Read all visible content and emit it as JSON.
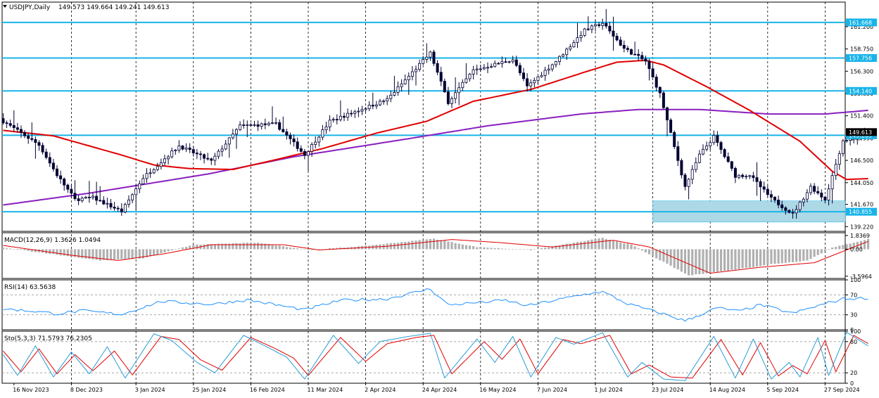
{
  "window": {
    "symbol_label": "USDJPY,Daily",
    "ohlc_label": "149.573 149.664 149.241 149.613",
    "collapse_icon": "triangle-down-icon"
  },
  "colors": {
    "background": "#ffffff",
    "frame": "#000000",
    "candle": "#000033",
    "ma_fast": "#e00000",
    "ma_slow": "#8a1fc0",
    "level_line": "#18b4e8",
    "zone_fill": "#add8e6",
    "macd_hist": "#b0b0b0",
    "macd_signal": "#e00000",
    "rsi_line": "#1e90ff",
    "sto_main": "#2a9dd6",
    "sto_signal": "#e00000",
    "grid": "#000000"
  },
  "chart_data": [
    {
      "type": "candlestick",
      "panel": "price",
      "symbol": "USDJPY",
      "timeframe": "Daily",
      "y_ticks": [
        "161.200",
        "158.750",
        "156.300",
        "153.850",
        "151.400",
        "148.950",
        "146.500",
        "144.050",
        "141.670",
        "139.220"
      ],
      "y_tick_values": [
        161.2,
        158.75,
        156.3,
        153.85,
        151.4,
        148.95,
        146.5,
        144.05,
        141.67,
        139.22
      ],
      "ylim": [
        138.7,
        163.9
      ],
      "x_ticks": [
        "16 Nov 2023",
        "8 Dec 2023",
        "3 Jan 2024",
        "25 Jan 2024",
        "16 Feb 2024",
        "11 Mar 2024",
        "2 Apr 2024",
        "24 Apr 2024",
        "16 May 2024",
        "7 Jun 2024",
        "1 Jul 2024",
        "23 Jul 2024",
        "14 Aug 2024",
        "5 Sep 2024",
        "27 Sep 2024"
      ],
      "grid": "vertical-dashed",
      "horizontal_levels": [
        {
          "value": 161.668,
          "label": "161.668"
        },
        {
          "value": 157.756,
          "label": "157.756"
        },
        {
          "value": 154.14,
          "label": "154.140"
        },
        {
          "value": 149.263,
          "label": "149.263"
        },
        {
          "value": 140.855,
          "label": "140.855"
        }
      ],
      "zone": {
        "from": "23 Jul 2024",
        "to_after_last_bar_days": 14,
        "top": 142.05,
        "bottom": 139.72
      },
      "price_tag": "149.613",
      "close_anchors": [
        {
          "d": "2023-11-13",
          "c": 150.8
        },
        {
          "d": "2023-11-20",
          "c": 149.5
        },
        {
          "d": "2023-11-27",
          "c": 148.2
        },
        {
          "d": "2023-12-04",
          "c": 144.9
        },
        {
          "d": "2023-12-11",
          "c": 142.2
        },
        {
          "d": "2023-12-18",
          "c": 142.4
        },
        {
          "d": "2023-12-28",
          "c": 140.9
        },
        {
          "d": "2024-01-05",
          "c": 144.6
        },
        {
          "d": "2024-01-19",
          "c": 148.1
        },
        {
          "d": "2024-02-01",
          "c": 146.4
        },
        {
          "d": "2024-02-13",
          "c": 150.3
        },
        {
          "d": "2024-02-27",
          "c": 150.5
        },
        {
          "d": "2024-03-08",
          "c": 147.1
        },
        {
          "d": "2024-03-19",
          "c": 150.8
        },
        {
          "d": "2024-04-10",
          "c": 153.2
        },
        {
          "d": "2024-04-26",
          "c": 158.3
        },
        {
          "d": "2024-05-03",
          "c": 152.9
        },
        {
          "d": "2024-05-14",
          "c": 156.4
        },
        {
          "d": "2024-05-29",
          "c": 157.6
        },
        {
          "d": "2024-06-04",
          "c": 154.6
        },
        {
          "d": "2024-06-14",
          "c": 157.4
        },
        {
          "d": "2024-06-26",
          "c": 160.8
        },
        {
          "d": "2024-07-03",
          "c": 161.6
        },
        {
          "d": "2024-07-11",
          "c": 158.8
        },
        {
          "d": "2024-07-19",
          "c": 157.4
        },
        {
          "d": "2024-07-25",
          "c": 153.8
        },
        {
          "d": "2024-08-05",
          "c": 143.6
        },
        {
          "d": "2024-08-09",
          "c": 147.1
        },
        {
          "d": "2024-08-15",
          "c": 149.1
        },
        {
          "d": "2024-08-23",
          "c": 144.8
        },
        {
          "d": "2024-08-29",
          "c": 144.9
        },
        {
          "d": "2024-09-06",
          "c": 142.3
        },
        {
          "d": "2024-09-16",
          "c": 140.6
        },
        {
          "d": "2024-09-23",
          "c": 143.6
        },
        {
          "d": "2024-09-27",
          "c": 142.2
        },
        {
          "d": "2024-10-04",
          "c": 148.7
        },
        {
          "d": "2024-10-11",
          "c": 149.1
        },
        {
          "d": "2024-10-15",
          "c": 149.6
        }
      ],
      "ma_fast_anchors": [
        {
          "d": "2023-11-13",
          "v": 149.8
        },
        {
          "d": "2023-12-01",
          "v": 149.2
        },
        {
          "d": "2023-12-27",
          "v": 147.2
        },
        {
          "d": "2024-01-10",
          "v": 146.0
        },
        {
          "d": "2024-01-24",
          "v": 145.6
        },
        {
          "d": "2024-02-09",
          "v": 145.5
        },
        {
          "d": "2024-02-23",
          "v": 146.4
        },
        {
          "d": "2024-03-15",
          "v": 147.8
        },
        {
          "d": "2024-04-05",
          "v": 149.5
        },
        {
          "d": "2024-04-25",
          "v": 150.8
        },
        {
          "d": "2024-05-14",
          "v": 153.0
        },
        {
          "d": "2024-06-05",
          "v": 154.3
        },
        {
          "d": "2024-06-26",
          "v": 156.2
        },
        {
          "d": "2024-07-09",
          "v": 157.3
        },
        {
          "d": "2024-07-19",
          "v": 157.5
        },
        {
          "d": "2024-07-26",
          "v": 157.0
        },
        {
          "d": "2024-08-13",
          "v": 154.6
        },
        {
          "d": "2024-08-29",
          "v": 152.0
        },
        {
          "d": "2024-09-18",
          "v": 148.6
        },
        {
          "d": "2024-10-01",
          "v": 145.3
        },
        {
          "d": "2024-10-07",
          "v": 144.4
        },
        {
          "d": "2024-10-15",
          "v": 144.5
        }
      ],
      "ma_slow_anchors": [
        {
          "d": "2023-11-13",
          "v": 141.6
        },
        {
          "d": "2023-12-15",
          "v": 142.9
        },
        {
          "d": "2024-01-31",
          "v": 145.0
        },
        {
          "d": "2024-03-05",
          "v": 146.9
        },
        {
          "d": "2024-04-15",
          "v": 148.7
        },
        {
          "d": "2024-05-20",
          "v": 150.3
        },
        {
          "d": "2024-06-25",
          "v": 151.6
        },
        {
          "d": "2024-07-17",
          "v": 152.1
        },
        {
          "d": "2024-08-09",
          "v": 152.1
        },
        {
          "d": "2024-09-05",
          "v": 151.6
        },
        {
          "d": "2024-09-27",
          "v": 151.6
        },
        {
          "d": "2024-10-15",
          "v": 152.0
        }
      ]
    },
    {
      "type": "histogram",
      "panel": "macd",
      "label": "MACD(12,26,9) 1.3626 1.0494",
      "y_ticks": [
        "1.8369",
        "0.00",
        "-3.5964"
      ],
      "y_tick_values": [
        1.8369,
        0,
        -3.5964
      ],
      "ylim": [
        -3.9,
        2.2
      ],
      "hist_anchors": [
        {
          "d": "2023-11-13",
          "v": 0.2
        },
        {
          "d": "2023-11-30",
          "v": -0.6
        },
        {
          "d": "2023-12-20",
          "v": -1.5
        },
        {
          "d": "2024-01-05",
          "v": -1.2
        },
        {
          "d": "2024-01-25",
          "v": 0.6
        },
        {
          "d": "2024-02-20",
          "v": 0.9
        },
        {
          "d": "2024-03-11",
          "v": -0.1
        },
        {
          "d": "2024-04-01",
          "v": 0.4
        },
        {
          "d": "2024-04-29",
          "v": 1.4
        },
        {
          "d": "2024-05-15",
          "v": 0.3
        },
        {
          "d": "2024-06-05",
          "v": -0.1
        },
        {
          "d": "2024-07-03",
          "v": 1.5
        },
        {
          "d": "2024-07-15",
          "v": 0.6
        },
        {
          "d": "2024-08-06",
          "v": -3.5
        },
        {
          "d": "2024-08-23",
          "v": -2.7
        },
        {
          "d": "2024-09-06",
          "v": -2.0
        },
        {
          "d": "2024-09-20",
          "v": -1.5
        },
        {
          "d": "2024-10-01",
          "v": 0.2
        },
        {
          "d": "2024-10-15",
          "v": 1.36
        }
      ],
      "signal_anchors": [
        {
          "d": "2023-11-13",
          "v": 0.5
        },
        {
          "d": "2023-12-08",
          "v": -0.8
        },
        {
          "d": "2023-12-27",
          "v": -1.5
        },
        {
          "d": "2024-01-15",
          "v": -0.6
        },
        {
          "d": "2024-02-01",
          "v": 0.6
        },
        {
          "d": "2024-02-29",
          "v": 0.6
        },
        {
          "d": "2024-03-14",
          "v": -0.1
        },
        {
          "d": "2024-04-10",
          "v": 0.4
        },
        {
          "d": "2024-05-06",
          "v": 1.3
        },
        {
          "d": "2024-05-23",
          "v": 0.9
        },
        {
          "d": "2024-06-13",
          "v": 0.3
        },
        {
          "d": "2024-07-08",
          "v": 1.2
        },
        {
          "d": "2024-07-20",
          "v": 0.3
        },
        {
          "d": "2024-08-14",
          "v": -3.2
        },
        {
          "d": "2024-09-03",
          "v": -2.4
        },
        {
          "d": "2024-09-24",
          "v": -1.8
        },
        {
          "d": "2024-10-15",
          "v": 1.05
        }
      ]
    },
    {
      "type": "line",
      "panel": "rsi",
      "label": "RSI(14) 63.5638",
      "y_ticks": [
        "100",
        "70",
        "30",
        "0"
      ],
      "y_tick_values": [
        100,
        70,
        30,
        0
      ],
      "ylim": [
        0,
        100
      ],
      "levels": [
        70,
        30
      ],
      "anchors": [
        {
          "d": "2023-11-13",
          "v": 42
        },
        {
          "d": "2023-11-24",
          "v": 37
        },
        {
          "d": "2023-12-04",
          "v": 32
        },
        {
          "d": "2023-12-13",
          "v": 38
        },
        {
          "d": "2023-12-28",
          "v": 31
        },
        {
          "d": "2024-01-12",
          "v": 57
        },
        {
          "d": "2024-02-01",
          "v": 51
        },
        {
          "d": "2024-02-15",
          "v": 60
        },
        {
          "d": "2024-03-08",
          "v": 40
        },
        {
          "d": "2024-03-22",
          "v": 59
        },
        {
          "d": "2024-04-10",
          "v": 62
        },
        {
          "d": "2024-04-26",
          "v": 82
        },
        {
          "d": "2024-05-03",
          "v": 50
        },
        {
          "d": "2024-05-27",
          "v": 59
        },
        {
          "d": "2024-06-04",
          "v": 48
        },
        {
          "d": "2024-06-28",
          "v": 74
        },
        {
          "d": "2024-07-03",
          "v": 76
        },
        {
          "d": "2024-07-12",
          "v": 52
        },
        {
          "d": "2024-07-25",
          "v": 34
        },
        {
          "d": "2024-08-05",
          "v": 18
        },
        {
          "d": "2024-08-16",
          "v": 44
        },
        {
          "d": "2024-08-26",
          "v": 37
        },
        {
          "d": "2024-09-03",
          "v": 50
        },
        {
          "d": "2024-09-16",
          "v": 33
        },
        {
          "d": "2024-09-25",
          "v": 48
        },
        {
          "d": "2024-10-04",
          "v": 62
        },
        {
          "d": "2024-10-15",
          "v": 63.6
        }
      ]
    },
    {
      "type": "line",
      "panel": "stochastic",
      "label": "Sto(5,3,3) 71.5793 76.2305",
      "y_ticks": [
        "100",
        "80",
        "20",
        "0"
      ],
      "y_tick_values": [
        100,
        80,
        20,
        0
      ],
      "ylim": [
        0,
        100
      ],
      "levels": [
        80,
        20
      ],
      "main_anchors": [
        {
          "d": "2023-11-13",
          "v": 55
        },
        {
          "d": "2023-11-17",
          "v": 15
        },
        {
          "d": "2023-11-24",
          "v": 72
        },
        {
          "d": "2023-12-01",
          "v": 12
        },
        {
          "d": "2023-12-08",
          "v": 60
        },
        {
          "d": "2023-12-15",
          "v": 18
        },
        {
          "d": "2023-12-22",
          "v": 70
        },
        {
          "d": "2023-12-29",
          "v": 10
        },
        {
          "d": "2024-01-10",
          "v": 95
        },
        {
          "d": "2024-01-17",
          "v": 82
        },
        {
          "d": "2024-01-26",
          "v": 40
        },
        {
          "d": "2024-02-02",
          "v": 20
        },
        {
          "d": "2024-02-14",
          "v": 92
        },
        {
          "d": "2024-02-23",
          "v": 68
        },
        {
          "d": "2024-03-01",
          "v": 50
        },
        {
          "d": "2024-03-08",
          "v": 8
        },
        {
          "d": "2024-03-20",
          "v": 92
        },
        {
          "d": "2024-03-29",
          "v": 38
        },
        {
          "d": "2024-04-08",
          "v": 80
        },
        {
          "d": "2024-04-18",
          "v": 90
        },
        {
          "d": "2024-04-26",
          "v": 96
        },
        {
          "d": "2024-05-02",
          "v": 10
        },
        {
          "d": "2024-05-15",
          "v": 85
        },
        {
          "d": "2024-05-22",
          "v": 40
        },
        {
          "d": "2024-05-29",
          "v": 90
        },
        {
          "d": "2024-06-05",
          "v": 12
        },
        {
          "d": "2024-06-14",
          "v": 88
        },
        {
          "d": "2024-06-21",
          "v": 75
        },
        {
          "d": "2024-07-03",
          "v": 97
        },
        {
          "d": "2024-07-12",
          "v": 12
        },
        {
          "d": "2024-07-18",
          "v": 40
        },
        {
          "d": "2024-07-26",
          "v": 8
        },
        {
          "d": "2024-08-05",
          "v": 5
        },
        {
          "d": "2024-08-15",
          "v": 90
        },
        {
          "d": "2024-08-23",
          "v": 10
        },
        {
          "d": "2024-08-30",
          "v": 85
        },
        {
          "d": "2024-09-06",
          "v": 8
        },
        {
          "d": "2024-09-13",
          "v": 40
        },
        {
          "d": "2024-09-18",
          "v": 12
        },
        {
          "d": "2024-09-25",
          "v": 88
        },
        {
          "d": "2024-09-30",
          "v": 15
        },
        {
          "d": "2024-10-07",
          "v": 98
        },
        {
          "d": "2024-10-15",
          "v": 71.6
        }
      ],
      "signal_anchors": [
        {
          "d": "2023-11-13",
          "v": 62
        },
        {
          "d": "2023-11-20",
          "v": 22
        },
        {
          "d": "2023-11-27",
          "v": 66
        },
        {
          "d": "2023-12-04",
          "v": 18
        },
        {
          "d": "2023-12-11",
          "v": 55
        },
        {
          "d": "2023-12-18",
          "v": 24
        },
        {
          "d": "2023-12-26",
          "v": 62
        },
        {
          "d": "2024-01-02",
          "v": 16
        },
        {
          "d": "2024-01-12",
          "v": 90
        },
        {
          "d": "2024-01-19",
          "v": 84
        },
        {
          "d": "2024-01-29",
          "v": 45
        },
        {
          "d": "2024-02-06",
          "v": 25
        },
        {
          "d": "2024-02-16",
          "v": 88
        },
        {
          "d": "2024-02-27",
          "v": 66
        },
        {
          "d": "2024-03-05",
          "v": 48
        },
        {
          "d": "2024-03-11",
          "v": 15
        },
        {
          "d": "2024-03-22",
          "v": 88
        },
        {
          "d": "2024-04-02",
          "v": 42
        },
        {
          "d": "2024-04-10",
          "v": 76
        },
        {
          "d": "2024-04-22",
          "v": 88
        },
        {
          "d": "2024-04-29",
          "v": 92
        },
        {
          "d": "2024-05-06",
          "v": 18
        },
        {
          "d": "2024-05-17",
          "v": 80
        },
        {
          "d": "2024-05-24",
          "v": 46
        },
        {
          "d": "2024-05-31",
          "v": 85
        },
        {
          "d": "2024-06-07",
          "v": 18
        },
        {
          "d": "2024-06-18",
          "v": 84
        },
        {
          "d": "2024-06-25",
          "v": 76
        },
        {
          "d": "2024-07-05",
          "v": 92
        },
        {
          "d": "2024-07-15",
          "v": 18
        },
        {
          "d": "2024-07-22",
          "v": 35
        },
        {
          "d": "2024-07-30",
          "v": 12
        },
        {
          "d": "2024-08-07",
          "v": 10
        },
        {
          "d": "2024-08-19",
          "v": 84
        },
        {
          "d": "2024-08-27",
          "v": 16
        },
        {
          "d": "2024-09-03",
          "v": 78
        },
        {
          "d": "2024-09-10",
          "v": 14
        },
        {
          "d": "2024-09-16",
          "v": 34
        },
        {
          "d": "2024-09-20",
          "v": 18
        },
        {
          "d": "2024-09-27",
          "v": 82
        },
        {
          "d": "2024-10-02",
          "v": 22
        },
        {
          "d": "2024-10-09",
          "v": 92
        },
        {
          "d": "2024-10-15",
          "v": 76.2
        }
      ]
    }
  ]
}
